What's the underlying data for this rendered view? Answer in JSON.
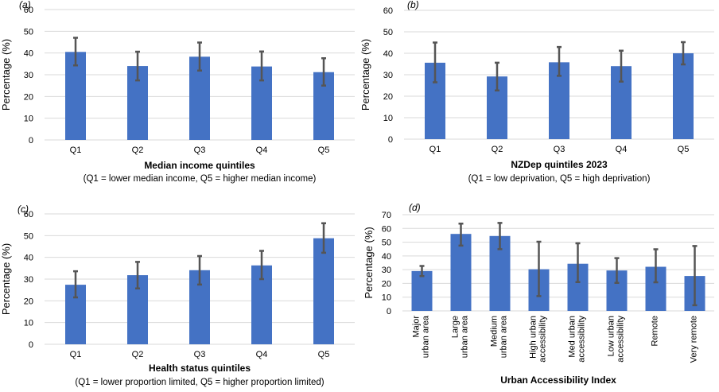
{
  "chart_data": [
    {
      "type": "bar",
      "panel_label": "(a)",
      "categories": [
        "Q1",
        "Q2",
        "Q3",
        "Q4",
        "Q5"
      ],
      "values": [
        40.5,
        34,
        38.3,
        33.8,
        31.2
      ],
      "error_low": [
        34.3,
        27.4,
        31.9,
        27.4,
        25
      ],
      "error_high": [
        47,
        40.6,
        44.8,
        40.7,
        37.6
      ],
      "ylabel": "Percentage (%)",
      "xlabel": "Median income quintiles",
      "xsublabel": "(Q1 = lower median income, Q5 = higher median income)",
      "ylim": [
        0,
        60
      ],
      "yticks": [
        0,
        10,
        20,
        30,
        40,
        50,
        60
      ]
    },
    {
      "type": "bar",
      "panel_label": "(b)",
      "categories": [
        "Q1",
        "Q2",
        "Q3",
        "Q4",
        "Q5"
      ],
      "values": [
        35.6,
        29.2,
        35.8,
        34,
        40
      ],
      "error_low": [
        26.5,
        22.7,
        29.5,
        26.8,
        34.8
      ],
      "error_high": [
        45,
        35.6,
        42.9,
        41.2,
        45.2
      ],
      "ylabel": "Percentage (%)",
      "xlabel": "NZDep quintiles 2023",
      "xsublabel": "(Q1 = low deprivation, Q5 = high deprivation)",
      "ylim": [
        0,
        60
      ],
      "yticks": [
        0,
        10,
        20,
        30,
        40,
        50,
        60
      ]
    },
    {
      "type": "bar",
      "panel_label": "(c)",
      "categories": [
        "Q1",
        "Q2",
        "Q3",
        "Q4",
        "Q5"
      ],
      "values": [
        27.4,
        31.8,
        34.1,
        36.3,
        48.8
      ],
      "error_low": [
        21.6,
        25.7,
        27.5,
        30,
        42.1
      ],
      "error_high": [
        33.6,
        37.9,
        40.6,
        43,
        55.7
      ],
      "ylabel": "Percentage (%)",
      "xlabel": "Health status quintiles",
      "xsublabel": "(Q1 = lower  proportion limited, Q5 = higher proportion limited)",
      "ylim": [
        0,
        60
      ],
      "yticks": [
        0,
        10,
        20,
        30,
        40,
        50,
        60
      ]
    },
    {
      "type": "bar",
      "panel_label": "(d)",
      "categories": [
        [
          "Major",
          "urban area"
        ],
        [
          "Large",
          "urban area"
        ],
        [
          "Medium",
          "urban area"
        ],
        [
          "High urban",
          "accessibility"
        ],
        [
          "Med urban",
          "accessibility"
        ],
        [
          "Low urban",
          "accessibility"
        ],
        [
          "Remote"
        ],
        [
          "Very remote"
        ]
      ],
      "values": [
        29,
        56,
        54.5,
        30.3,
        34.3,
        29.4,
        32.1,
        25.4
      ],
      "error_low": [
        25.3,
        47.5,
        44.9,
        10.8,
        21,
        20.4,
        20.8,
        4.1
      ],
      "error_high": [
        32.7,
        63.5,
        64,
        50.3,
        49.2,
        38.4,
        44.8,
        47.2
      ],
      "ylabel": "Percentage (%)",
      "xlabel": "Urban Accessibility Index",
      "xsublabel": "",
      "ylim": [
        0,
        70
      ],
      "yticks": [
        0,
        10,
        20,
        30,
        40,
        50,
        60,
        70
      ]
    }
  ]
}
